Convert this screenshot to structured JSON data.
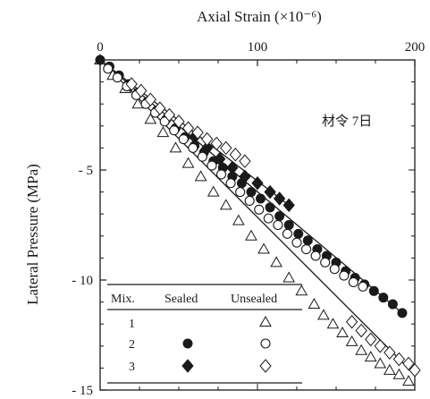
{
  "chart_data": {
    "type": "scatter",
    "title": "",
    "xlabel": "Axial Strain (×10⁻⁶)",
    "ylabel": "Lateral Pressure (MPa)",
    "xlim": [
      0,
      200
    ],
    "ylim": [
      -15,
      0
    ],
    "x_ticks": [
      "0",
      "100",
      "200"
    ],
    "y_ticks": [
      "- 5",
      "- 10",
      "- 15"
    ],
    "x_axis_position": "top",
    "grid": false,
    "annotation": "材令 7日",
    "legend": {
      "placement": "bottom-left",
      "headers": [
        "Mix.",
        "Sealed",
        "Unsealed"
      ],
      "rows": [
        {
          "mix": "1",
          "sealed": "",
          "unsealed": "triangle-open"
        },
        {
          "mix": "2",
          "sealed": "circle-filled",
          "unsealed": "circle-open"
        },
        {
          "mix": "3",
          "sealed": "diamond-filled",
          "unsealed": "diamond-open"
        }
      ]
    },
    "series": [
      {
        "mix": "1",
        "condition": "Unsealed",
        "marker": "triangle-open",
        "x": [
          0,
          8,
          16,
          24,
          32,
          40,
          48,
          56,
          64,
          72,
          80,
          88,
          96,
          104,
          112,
          120,
          128,
          136,
          142,
          148,
          154,
          160,
          166,
          172,
          178,
          184,
          190,
          196
        ],
        "y": [
          0,
          -0.7,
          -1.3,
          -2.0,
          -2.7,
          -3.3,
          -4.0,
          -4.7,
          -5.3,
          -6.0,
          -6.6,
          -7.3,
          -8.0,
          -8.6,
          -9.2,
          -9.9,
          -10.5,
          -11.1,
          -11.6,
          -12.0,
          -12.4,
          -12.8,
          -13.2,
          -13.5,
          -13.8,
          -14.1,
          -14.3,
          -14.6
        ]
      },
      {
        "mix": "2",
        "condition": "Sealed",
        "marker": "circle-filled",
        "x": [
          0,
          6,
          12,
          18,
          24,
          30,
          36,
          42,
          48,
          54,
          60,
          66,
          72,
          78,
          84,
          90,
          96,
          102,
          108,
          114,
          120,
          126,
          132,
          138,
          144,
          150,
          156,
          162,
          168,
          174,
          180,
          186,
          192
        ],
        "y": [
          0,
          -0.3,
          -0.7,
          -1.1,
          -1.5,
          -1.9,
          -2.3,
          -2.7,
          -3.1,
          -3.5,
          -3.9,
          -4.2,
          -4.6,
          -4.9,
          -5.3,
          -5.6,
          -6.0,
          -6.3,
          -6.7,
          -7.1,
          -7.5,
          -7.9,
          -8.2,
          -8.6,
          -8.9,
          -9.2,
          -9.6,
          -9.9,
          -10.2,
          -10.5,
          -10.8,
          -11.1,
          -11.5
        ]
      },
      {
        "mix": "2",
        "condition": "Unsealed",
        "marker": "circle-open",
        "x": [
          5,
          11,
          17,
          23,
          29,
          35,
          41,
          47,
          53,
          59,
          65,
          71,
          77,
          83,
          89,
          95,
          101,
          107,
          113,
          119,
          125,
          131,
          137,
          143,
          149,
          155,
          161,
          167
        ],
        "y": [
          -0.4,
          -0.8,
          -1.2,
          -1.6,
          -2.0,
          -2.4,
          -2.8,
          -3.2,
          -3.6,
          -4.0,
          -4.4,
          -4.8,
          -5.2,
          -5.6,
          -6.0,
          -6.4,
          -6.8,
          -7.2,
          -7.5,
          -7.9,
          -8.3,
          -8.6,
          -8.9,
          -9.2,
          -9.5,
          -9.8,
          -10.1,
          -10.3
        ]
      },
      {
        "mix": "3",
        "condition": "Sealed",
        "marker": "diamond-filled",
        "x": [
          60,
          68,
          76,
          84,
          92,
          100,
          108,
          114,
          120
        ],
        "y": [
          -3.5,
          -4.0,
          -4.5,
          -4.9,
          -5.3,
          -5.6,
          -6.0,
          -6.3,
          -6.6
        ]
      },
      {
        "mix": "3",
        "condition": "Unsealed",
        "marker": "diamond-open",
        "x": [
          20,
          26,
          32,
          38,
          44,
          50,
          56,
          62,
          68,
          74,
          80,
          86,
          92,
          160,
          166,
          172,
          178,
          184,
          190,
          196,
          200
        ],
        "y": [
          -1.1,
          -1.4,
          -1.8,
          -2.2,
          -2.5,
          -2.8,
          -3.1,
          -3.3,
          -3.6,
          -3.8,
          -4.0,
          -4.3,
          -4.6,
          -11.9,
          -12.3,
          -12.7,
          -13.0,
          -13.3,
          -13.6,
          -13.8,
          -14.1
        ]
      }
    ],
    "fit_lines": [
      {
        "mix": "1",
        "from": [
          0,
          0
        ],
        "to": [
          200,
          -14.3
        ]
      },
      {
        "mix": "2",
        "from": [
          0,
          0
        ],
        "to": [
          192,
          -11.5
        ]
      },
      {
        "mix": "3",
        "from": [
          0,
          0
        ],
        "to": [
          120,
          -6.6
        ]
      }
    ]
  }
}
